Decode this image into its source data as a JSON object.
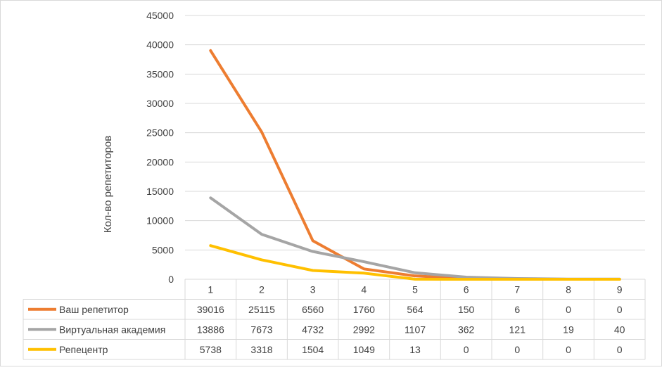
{
  "chart_data": {
    "type": "line",
    "ylabel": "Кол-во репетиторов",
    "ylim": [
      0,
      45000
    ],
    "yticks": [
      "0",
      "5000",
      "10000",
      "15000",
      "20000",
      "25000",
      "30000",
      "35000",
      "40000",
      "45000"
    ],
    "grid": true,
    "categories": [
      "1",
      "2",
      "3",
      "4",
      "5",
      "6",
      "7",
      "8",
      "9"
    ],
    "legend_placement": "data-table",
    "series": [
      {
        "name": "Ваш репетитор",
        "color": "#ED7D31",
        "values": [
          39016,
          25115,
          6560,
          1760,
          564,
          150,
          6,
          0,
          0
        ]
      },
      {
        "name": "Виртуальная академия",
        "color": "#A5A5A5",
        "values": [
          13886,
          7673,
          4732,
          2992,
          1107,
          362,
          121,
          19,
          40
        ]
      },
      {
        "name": "Репецентр",
        "color": "#FFC000",
        "values": [
          5738,
          3318,
          1504,
          1049,
          13,
          0,
          0,
          0,
          0
        ]
      }
    ]
  }
}
